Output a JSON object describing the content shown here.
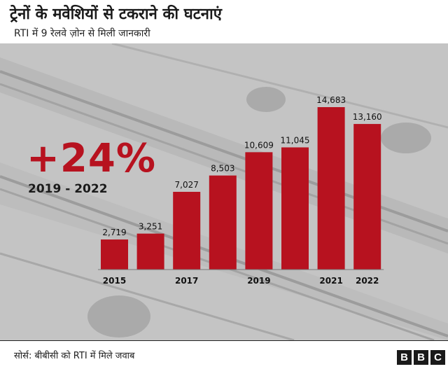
{
  "header": {
    "title": "ट्रेनों के मवेशियों से टकराने की घटनाएं",
    "subtitle": "RTI में 9 रेलवे ज़ोन से मिली जानकारी"
  },
  "highlight": {
    "change": "+24%",
    "range": "2019 - 2022"
  },
  "chart_data": {
    "type": "bar",
    "categories": [
      "2015",
      "2016",
      "2017",
      "2018",
      "2019",
      "2020",
      "2021",
      "2022"
    ],
    "tick_labels": [
      "2015",
      "",
      "2017",
      "",
      "2019",
      "",
      "2021",
      "2022"
    ],
    "values": [
      2719,
      3251,
      7027,
      8503,
      10609,
      11045,
      14683,
      13160
    ],
    "value_labels": [
      "2,719",
      "3,251",
      "7,027",
      "8,503",
      "10,609",
      "11,045",
      "14,683",
      "13,160"
    ],
    "bar_color": "#b7121f",
    "ylim": [
      0,
      14683
    ],
    "grid": false,
    "title": "",
    "xlabel": "",
    "ylabel": ""
  },
  "footer": {
    "source": "सोर्स: बीबीसी को RTI में मिले जवाब",
    "logo_letters": [
      "B",
      "B",
      "C"
    ]
  }
}
